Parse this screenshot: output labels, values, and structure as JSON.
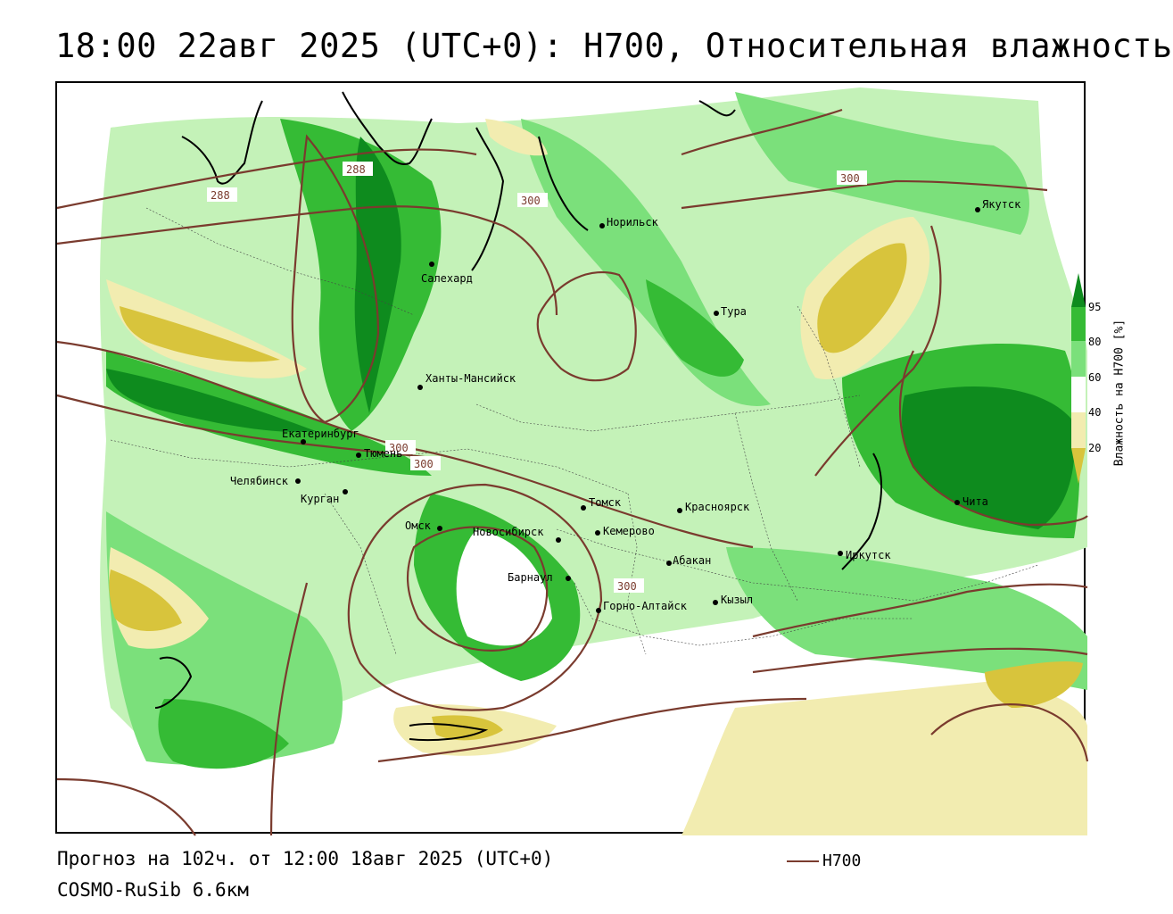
{
  "title": "18:00 22авг 2025 (UTC+0): H700, Относительная влажность",
  "footer": {
    "forecast": "Прогноз на 102ч. от 12:00 18авг 2025 (UTC+0)",
    "model": "COSMO-RuSib 6.6км"
  },
  "legend": {
    "line_label": "H700",
    "line_color": "#7a3b2e"
  },
  "colorbar": {
    "title": "Влажность на H700 [%]",
    "ticks": [
      "95",
      "80",
      "60",
      "40",
      "20"
    ],
    "colors": [
      "#0e8b1e",
      "#35bb35",
      "#7be07b",
      "#c4f2b8",
      "#ffffff",
      "#f2ecb0",
      "#d8c43c"
    ]
  },
  "cities": [
    {
      "name": "Норильск"
    },
    {
      "name": "Якутск"
    },
    {
      "name": "Салехард"
    },
    {
      "name": "Тура"
    },
    {
      "name": "Ханты-Мансийск"
    },
    {
      "name": "Екатеринбург"
    },
    {
      "name": "Тюмень"
    },
    {
      "name": "Челябинск"
    },
    {
      "name": "Курган"
    },
    {
      "name": "Омск"
    },
    {
      "name": "Новосибирск"
    },
    {
      "name": "Томск"
    },
    {
      "name": "Кемерово"
    },
    {
      "name": "Красноярск"
    },
    {
      "name": "Барнаул"
    },
    {
      "name": "Абакан"
    },
    {
      "name": "Горно-Алтайск"
    },
    {
      "name": "Кызыл"
    },
    {
      "name": "Иркутск"
    },
    {
      "name": "Чита"
    }
  ],
  "isolines": [
    {
      "label": "288"
    },
    {
      "label": "288"
    },
    {
      "label": "300"
    },
    {
      "label": "300"
    },
    {
      "label": "300"
    },
    {
      "label": "300"
    },
    {
      "label": "300"
    }
  ]
}
